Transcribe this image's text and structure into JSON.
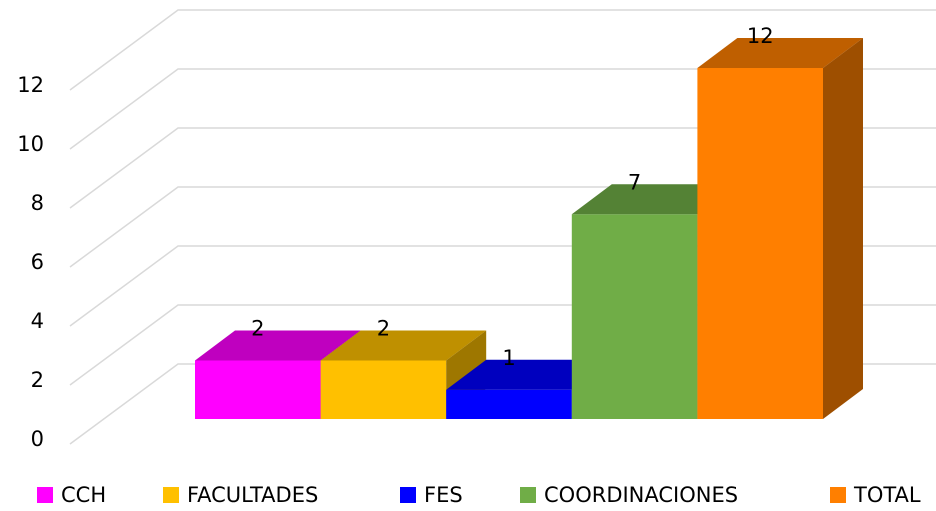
{
  "chart_data": {
    "type": "bar3d",
    "categories": [
      "CCH",
      "FACULTADES",
      "FES",
      "COORDINACIONES",
      "TOTAL"
    ],
    "values": [
      2,
      2,
      1,
      7,
      12
    ],
    "colors": [
      "#ff00ff",
      "#ffc000",
      "#0000ff",
      "#70ad47",
      "#ff7f00"
    ],
    "ylim": [
      0,
      12
    ],
    "yticks": [
      0,
      2,
      4,
      6,
      8,
      10,
      12
    ],
    "grid": true,
    "legend": "bottom"
  }
}
